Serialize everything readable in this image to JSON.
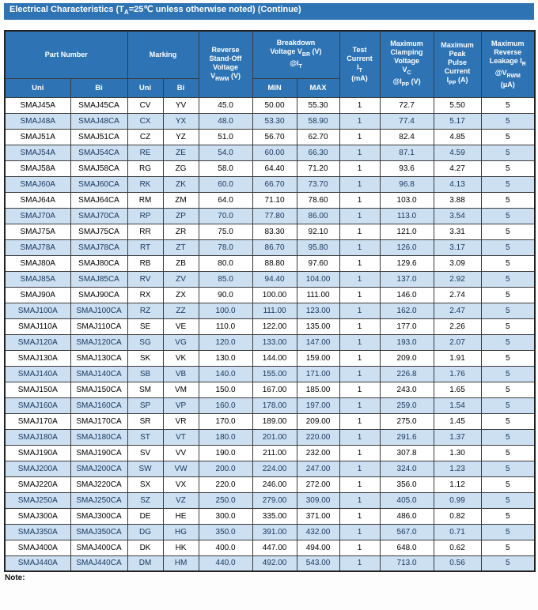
{
  "title": {
    "text": "Electrical Characteristics   (T{A}=25℃  unless otherwise noted) (Continue)"
  },
  "note_label": "Note:",
  "colors": {
    "header_blue": "#2e74b5",
    "alt_row_blue": "#cde0f2",
    "alt_row_text": "#17375e"
  },
  "table": {
    "header": {
      "part_number": "Part Number",
      "marking": "Marking",
      "uni": "Uni",
      "bi": "Bi",
      "reverse_standoff": "Reverse\nStand-Off\nVoltage\nV{RWM} (V)",
      "breakdown": "Breakdown\nVoltage V{BR}  (V)\n@I{T}",
      "min": "MIN",
      "max": "MAX",
      "test_current": "Test\nCurrent\nI{T}\n(mA)",
      "clamping": "Maximum\nClamping\nVoltage\nV{C}\n@I{PP} (V)",
      "peak_pulse": "Maximum\nPeak\nPulse\nCurrent\nI{PP} (A)",
      "leakage": "Maximum\nReverse\nLeakage I{R}\n@V{RWM}\n(μA)"
    },
    "rows": [
      [
        "SMAJ45A",
        "SMAJ45CA",
        "CV",
        "YV",
        "45.0",
        "50.00",
        "55.30",
        "1",
        "72.7",
        "5.50",
        "5"
      ],
      [
        "SMAJ48A",
        "SMAJ48CA",
        "CX",
        "YX",
        "48.0",
        "53.30",
        "58.90",
        "1",
        "77.4",
        "5.17",
        "5"
      ],
      [
        "SMAJ51A",
        "SMAJ51CA",
        "CZ",
        "YZ",
        "51.0",
        "56.70",
        "62.70",
        "1",
        "82.4",
        "4.85",
        "5"
      ],
      [
        "SMAJ54A",
        "SMAJ54CA",
        "RE",
        "ZE",
        "54.0",
        "60.00",
        "66.30",
        "1",
        "87.1",
        "4.59",
        "5"
      ],
      [
        "SMAJ58A",
        "SMAJ58CA",
        "RG",
        "ZG",
        "58.0",
        "64.40",
        "71.20",
        "1",
        "93.6",
        "4.27",
        "5"
      ],
      [
        "SMAJ60A",
        "SMAJ60CA",
        "RK",
        "ZK",
        "60.0",
        "66.70",
        "73.70",
        "1",
        "96.8",
        "4.13",
        "5"
      ],
      [
        "SMAJ64A",
        "SMAJ64CA",
        "RM",
        "ZM",
        "64.0",
        "71.10",
        "78.60",
        "1",
        "103.0",
        "3.88",
        "5"
      ],
      [
        "SMAJ70A",
        "SMAJ70CA",
        "RP",
        "ZP",
        "70.0",
        "77.80",
        "86.00",
        "1",
        "113.0",
        "3.54",
        "5"
      ],
      [
        "SMAJ75A",
        "SMAJ75CA",
        "RR",
        "ZR",
        "75.0",
        "83.30",
        "92.10",
        "1",
        "121.0",
        "3.31",
        "5"
      ],
      [
        "SMAJ78A",
        "SMAJ78CA",
        "RT",
        "ZT",
        "78.0",
        "86.70",
        "95.80",
        "1",
        "126.0",
        "3.17",
        "5"
      ],
      [
        "SMAJ80A",
        "SMAJ80CA",
        "RB",
        "ZB",
        "80.0",
        "88.80",
        "97.60",
        "1",
        "129.6",
        "3.09",
        "5"
      ],
      [
        "SMAJ85A",
        "SMAJ85CA",
        "RV",
        "ZV",
        "85.0",
        "94.40",
        "104.00",
        "1",
        "137.0",
        "2.92",
        "5"
      ],
      [
        "SMAJ90A",
        "SMAJ90CA",
        "RX",
        "ZX",
        "90.0",
        "100.00",
        "111.00",
        "1",
        "146.0",
        "2.74",
        "5"
      ],
      [
        "SMAJ100A",
        "SMAJ100CA",
        "RZ",
        "ZZ",
        "100.0",
        "111.00",
        "123.00",
        "1",
        "162.0",
        "2.47",
        "5"
      ],
      [
        "SMAJ110A",
        "SMAJ110CA",
        "SE",
        "VE",
        "110.0",
        "122.00",
        "135.00",
        "1",
        "177.0",
        "2.26",
        "5"
      ],
      [
        "SMAJ120A",
        "SMAJ120CA",
        "SG",
        "VG",
        "120.0",
        "133.00",
        "147.00",
        "1",
        "193.0",
        "2.07",
        "5"
      ],
      [
        "SMAJ130A",
        "SMAJ130CA",
        "SK",
        "VK",
        "130.0",
        "144.00",
        "159.00",
        "1",
        "209.0",
        "1.91",
        "5"
      ],
      [
        "SMAJ140A",
        "SMAJ140CA",
        "SB",
        "VB",
        "140.0",
        "155.00",
        "171.00",
        "1",
        "226.8",
        "1.76",
        "5"
      ],
      [
        "SMAJ150A",
        "SMAJ150CA",
        "SM",
        "VM",
        "150.0",
        "167.00",
        "185.00",
        "1",
        "243.0",
        "1.65",
        "5"
      ],
      [
        "SMAJ160A",
        "SMAJ160CA",
        "SP",
        "VP",
        "160.0",
        "178.00",
        "197.00",
        "1",
        "259.0",
        "1.54",
        "5"
      ],
      [
        "SMAJ170A",
        "SMAJ170CA",
        "SR",
        "VR",
        "170.0",
        "189.00",
        "209.00",
        "1",
        "275.0",
        "1.45",
        "5"
      ],
      [
        "SMAJ180A",
        "SMAJ180CA",
        "ST",
        "VT",
        "180.0",
        "201.00",
        "220.00",
        "1",
        "291.6",
        "1.37",
        "5"
      ],
      [
        "SMAJ190A",
        "SMAJ190CA",
        "SV",
        "VV",
        "190.0",
        "211.00",
        "232.00",
        "1",
        "307.8",
        "1.30",
        "5"
      ],
      [
        "SMAJ200A",
        "SMAJ200CA",
        "SW",
        "VW",
        "200.0",
        "224.00",
        "247.00",
        "1",
        "324.0",
        "1.23",
        "5"
      ],
      [
        "SMAJ220A",
        "SMAJ220CA",
        "SX",
        "VX",
        "220.0",
        "246.00",
        "272.00",
        "1",
        "356.0",
        "1.12",
        "5"
      ],
      [
        "SMAJ250A",
        "SMAJ250CA",
        "SZ",
        "VZ",
        "250.0",
        "279.00",
        "309.00",
        "1",
        "405.0",
        "0.99",
        "5"
      ],
      [
        "SMAJ300A",
        "SMAJ300CA",
        "DE",
        "HE",
        "300.0",
        "335.00",
        "371.00",
        "1",
        "486.0",
        "0.82",
        "5"
      ],
      [
        "SMAJ350A",
        "SMAJ350CA",
        "DG",
        "HG",
        "350.0",
        "391.00",
        "432.00",
        "1",
        "567.0",
        "0.71",
        "5"
      ],
      [
        "SMAJ400A",
        "SMAJ400CA",
        "DK",
        "HK",
        "400.0",
        "447.00",
        "494.00",
        "1",
        "648.0",
        "0.62",
        "5"
      ],
      [
        "SMAJ440A",
        "SMAJ440CA",
        "DM",
        "HM",
        "440.0",
        "492.00",
        "543.00",
        "1",
        "713.0",
        "0.56",
        "5"
      ]
    ]
  }
}
